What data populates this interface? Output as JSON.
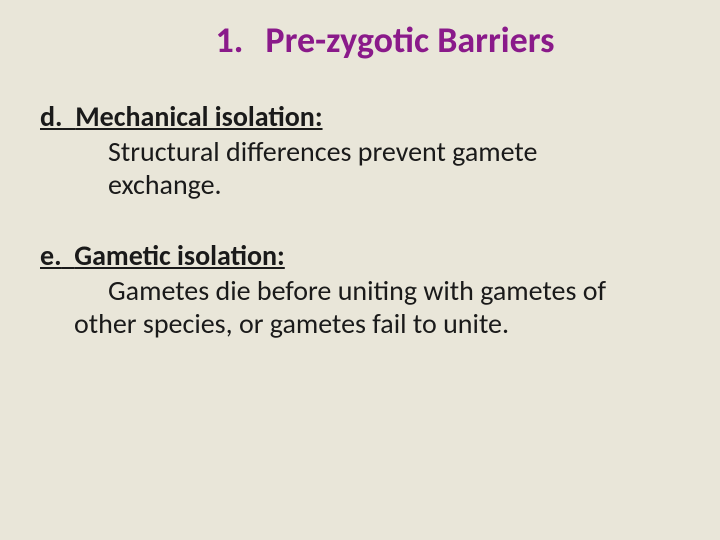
{
  "title": {
    "number": "1.",
    "text": "Pre-zygotic Barriers",
    "color": "#8a1a8a",
    "fontsize": 36
  },
  "body": {
    "color": "#1a1a1a",
    "fontsize": 28
  },
  "sections": [
    {
      "letter": "d.",
      "heading": "Mechanical isolation:",
      "body_lines": [
        "Structural differences prevent gamete",
        "exchange."
      ]
    },
    {
      "letter": "e.",
      "heading": "Gametic isolation:",
      "body_lines": [
        "Gametes die before uniting with gametes of",
        "other species, or gametes fail to unite."
      ]
    }
  ],
  "background_color": "#e9e6d9"
}
